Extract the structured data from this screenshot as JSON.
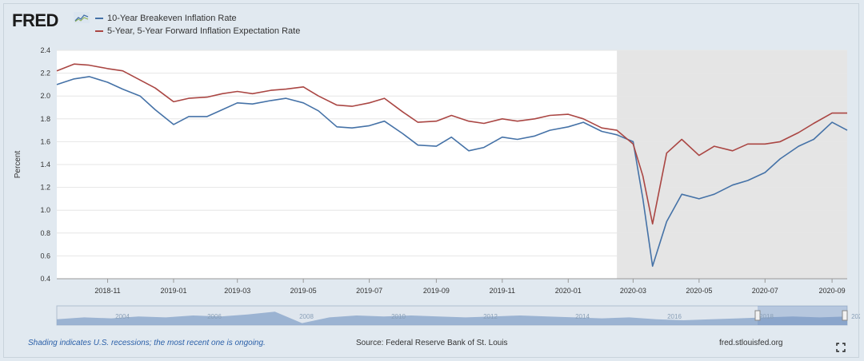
{
  "brand": {
    "logo_text": "FRED"
  },
  "footer": {
    "recession_note": "Shading indicates U.S. recessions; the most recent one is ongoing.",
    "source": "Source: Federal Reserve Bank of St. Louis",
    "url": "fred.stlouisfed.org"
  },
  "colors": {
    "series_1": "#4572a7",
    "series_2": "#aa4643",
    "recession": "#e5e5e5",
    "plot_bg": "#ffffff"
  },
  "chart_data": {
    "type": "line",
    "title": "",
    "ylabel": "Percent",
    "ylim": [
      0.4,
      2.4
    ],
    "yticks": [
      "0.4",
      "0.6",
      "0.8",
      "1.0",
      "1.2",
      "1.4",
      "1.6",
      "1.8",
      "2.0",
      "2.2",
      "2.4"
    ],
    "xlim": [
      "2018-09-15",
      "2020-09-15"
    ],
    "xticks": [
      "2018-11",
      "2019-01",
      "2019-03",
      "2019-05",
      "2019-07",
      "2019-09",
      "2019-11",
      "2020-01",
      "2020-03",
      "2020-05",
      "2020-07",
      "2020-09"
    ],
    "grid": "horizontal",
    "legend_position": "top-left",
    "recession": {
      "start": "2020-02-15",
      "end": "ongoing"
    },
    "navigator_labels": [
      "2004",
      "2006",
      "2008",
      "2010",
      "2012",
      "2014",
      "2016",
      "2018",
      "2020"
    ],
    "series": [
      {
        "name": "10-Year Breakeven Inflation Rate",
        "x": [
          "2018-09-15",
          "2018-10-01",
          "2018-10-15",
          "2018-11-01",
          "2018-11-15",
          "2018-12-01",
          "2018-12-15",
          "2019-01-01",
          "2019-01-15",
          "2019-02-01",
          "2019-02-15",
          "2019-03-01",
          "2019-03-15",
          "2019-04-01",
          "2019-04-15",
          "2019-05-01",
          "2019-05-15",
          "2019-06-01",
          "2019-06-15",
          "2019-07-01",
          "2019-07-15",
          "2019-08-01",
          "2019-08-15",
          "2019-09-01",
          "2019-09-15",
          "2019-10-01",
          "2019-10-15",
          "2019-11-01",
          "2019-11-15",
          "2019-12-01",
          "2019-12-15",
          "2020-01-01",
          "2020-01-15",
          "2020-02-01",
          "2020-02-15",
          "2020-03-01",
          "2020-03-10",
          "2020-03-19",
          "2020-04-01",
          "2020-04-15",
          "2020-05-01",
          "2020-05-15",
          "2020-06-01",
          "2020-06-15",
          "2020-07-01",
          "2020-07-15",
          "2020-08-01",
          "2020-08-15",
          "2020-09-01",
          "2020-09-15"
        ],
        "values": [
          2.1,
          2.15,
          2.17,
          2.12,
          2.06,
          2.0,
          1.88,
          1.75,
          1.82,
          1.82,
          1.88,
          1.94,
          1.93,
          1.96,
          1.98,
          1.94,
          1.87,
          1.73,
          1.72,
          1.74,
          1.78,
          1.67,
          1.57,
          1.56,
          1.64,
          1.52,
          1.55,
          1.64,
          1.62,
          1.65,
          1.7,
          1.73,
          1.77,
          1.69,
          1.66,
          1.6,
          1.1,
          0.51,
          0.9,
          1.14,
          1.1,
          1.14,
          1.22,
          1.26,
          1.33,
          1.45,
          1.56,
          1.62,
          1.77,
          1.7
        ]
      },
      {
        "name": "5-Year, 5-Year Forward Inflation Expectation Rate",
        "x": [
          "2018-09-15",
          "2018-10-01",
          "2018-10-15",
          "2018-11-01",
          "2018-11-15",
          "2018-12-01",
          "2018-12-15",
          "2019-01-01",
          "2019-01-15",
          "2019-02-01",
          "2019-02-15",
          "2019-03-01",
          "2019-03-15",
          "2019-04-01",
          "2019-04-15",
          "2019-05-01",
          "2019-05-15",
          "2019-06-01",
          "2019-06-15",
          "2019-07-01",
          "2019-07-15",
          "2019-08-01",
          "2019-08-15",
          "2019-09-01",
          "2019-09-15",
          "2019-10-01",
          "2019-10-15",
          "2019-11-01",
          "2019-11-15",
          "2019-12-01",
          "2019-12-15",
          "2020-01-01",
          "2020-01-15",
          "2020-02-01",
          "2020-02-15",
          "2020-03-01",
          "2020-03-10",
          "2020-03-19",
          "2020-04-01",
          "2020-04-15",
          "2020-05-01",
          "2020-05-15",
          "2020-06-01",
          "2020-06-15",
          "2020-07-01",
          "2020-07-15",
          "2020-08-01",
          "2020-08-15",
          "2020-09-01",
          "2020-09-15"
        ],
        "values": [
          2.22,
          2.28,
          2.27,
          2.24,
          2.22,
          2.14,
          2.07,
          1.95,
          1.98,
          1.99,
          2.02,
          2.04,
          2.02,
          2.05,
          2.06,
          2.08,
          2.0,
          1.92,
          1.91,
          1.94,
          1.98,
          1.86,
          1.77,
          1.78,
          1.83,
          1.78,
          1.76,
          1.8,
          1.78,
          1.8,
          1.83,
          1.84,
          1.8,
          1.72,
          1.7,
          1.58,
          1.3,
          0.88,
          1.5,
          1.62,
          1.48,
          1.56,
          1.52,
          1.58,
          1.58,
          1.6,
          1.68,
          1.76,
          1.85,
          1.85
        ]
      }
    ]
  }
}
